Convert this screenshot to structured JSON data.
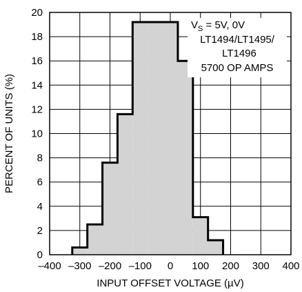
{
  "chart_data": {
    "type": "histogram",
    "title": "",
    "xlabel": "INPUT OFFSET VOLTAGE (µV)",
    "ylabel": "PERCENT OF UNITS (%)",
    "xlim": [
      -400,
      400
    ],
    "ylim": [
      0,
      20
    ],
    "x_ticks": [
      -400,
      -300,
      -200,
      -100,
      0,
      100,
      200,
      300,
      400
    ],
    "x_tick_labels": [
      "–400",
      "–300",
      "–200",
      "–100",
      "0",
      "100",
      "200",
      "300",
      "400"
    ],
    "y_ticks": [
      0,
      2,
      4,
      6,
      8,
      10,
      12,
      14,
      16,
      18,
      20
    ],
    "y_tick_labels": [
      "0",
      "2",
      "4",
      "6",
      "8",
      "10",
      "12",
      "14",
      "16",
      "18",
      "20"
    ],
    "grid": true,
    "bins": [
      {
        "x0": -325,
        "x1": -275,
        "value": 0.6
      },
      {
        "x0": -275,
        "x1": -225,
        "value": 2.5
      },
      {
        "x0": -225,
        "x1": -175,
        "value": 7.6
      },
      {
        "x0": -175,
        "x1": -125,
        "value": 11.6
      },
      {
        "x0": -125,
        "x1": -75,
        "value": 19.2
      },
      {
        "x0": -75,
        "x1": -25,
        "value": 19.2
      },
      {
        "x0": -25,
        "x1": 25,
        "value": 19.2
      },
      {
        "x0": 25,
        "x1": 75,
        "value": 16.0
      },
      {
        "x0": 75,
        "x1": 125,
        "value": 3.1
      },
      {
        "x0": 125,
        "x1": 175,
        "value": 1.2
      }
    ],
    "bar_fill": "#d3d3d3",
    "bar_outline": "#000000",
    "annotation": {
      "line1_main": "V",
      "line1_sub": "S",
      "line1_rest": " = 5V, 0V",
      "line2": "LT1494/LT1495/",
      "line3": "LT1496",
      "line4": "5700 OP AMPS"
    }
  }
}
